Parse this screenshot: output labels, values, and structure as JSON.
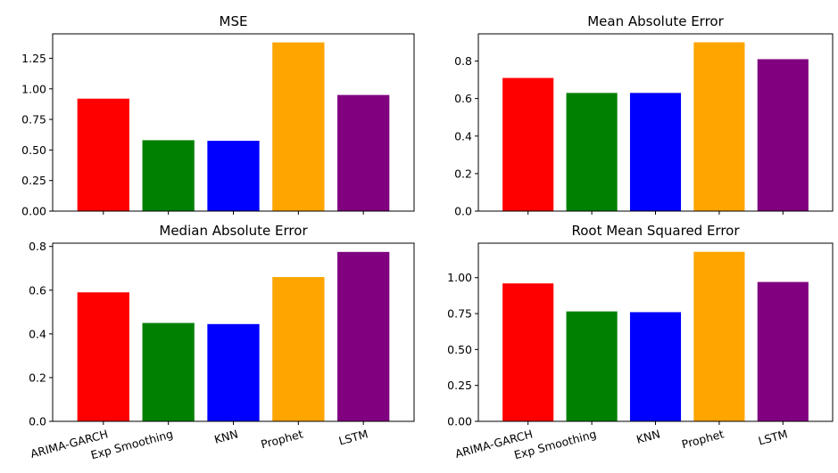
{
  "chart_data": [
    {
      "type": "bar",
      "title": "MSE",
      "categories": [
        "ARIMA-GARCH",
        "Exp Smoothing",
        "KNN",
        "Prophet",
        "LSTM"
      ],
      "values": [
        0.92,
        0.58,
        0.575,
        1.38,
        0.95
      ],
      "colors": [
        "#ff0000",
        "#008000",
        "#0000ff",
        "#ffa500",
        "#800080"
      ],
      "ylim": [
        0,
        1.45
      ],
      "yticks": [
        0.0,
        0.25,
        0.5,
        0.75,
        1.0,
        1.25
      ],
      "ytick_labels": [
        "0.00",
        "0.25",
        "0.50",
        "0.75",
        "1.00",
        "1.25"
      ],
      "show_xtick_labels": false
    },
    {
      "type": "bar",
      "title": "Mean Absolute Error",
      "categories": [
        "ARIMA-GARCH",
        "Exp Smoothing",
        "KNN",
        "Prophet",
        "LSTM"
      ],
      "values": [
        0.71,
        0.63,
        0.63,
        0.9,
        0.81
      ],
      "colors": [
        "#ff0000",
        "#008000",
        "#0000ff",
        "#ffa500",
        "#800080"
      ],
      "ylim": [
        0,
        0.945
      ],
      "yticks": [
        0.0,
        0.2,
        0.4,
        0.6,
        0.8
      ],
      "ytick_labels": [
        "0.0",
        "0.2",
        "0.4",
        "0.6",
        "0.8"
      ],
      "show_xtick_labels": false
    },
    {
      "type": "bar",
      "title": "Median Absolute Error",
      "categories": [
        "ARIMA-GARCH",
        "Exp Smoothing",
        "KNN",
        "Prophet",
        "LSTM"
      ],
      "values": [
        0.59,
        0.45,
        0.445,
        0.66,
        0.775
      ],
      "colors": [
        "#ff0000",
        "#008000",
        "#0000ff",
        "#ffa500",
        "#800080"
      ],
      "ylim": [
        0,
        0.815
      ],
      "yticks": [
        0.0,
        0.2,
        0.4,
        0.6,
        0.8
      ],
      "ytick_labels": [
        "0.0",
        "0.2",
        "0.4",
        "0.6",
        "0.8"
      ],
      "show_xtick_labels": true
    },
    {
      "type": "bar",
      "title": "Root Mean Squared Error",
      "categories": [
        "ARIMA-GARCH",
        "Exp Smoothing",
        "KNN",
        "Prophet",
        "LSTM"
      ],
      "values": [
        0.96,
        0.765,
        0.76,
        1.18,
        0.97
      ],
      "colors": [
        "#ff0000",
        "#008000",
        "#0000ff",
        "#ffa500",
        "#800080"
      ],
      "ylim": [
        0,
        1.24
      ],
      "yticks": [
        0.0,
        0.25,
        0.5,
        0.75,
        1.0
      ],
      "ytick_labels": [
        "0.00",
        "0.25",
        "0.50",
        "0.75",
        "1.00"
      ],
      "show_xtick_labels": true
    }
  ]
}
